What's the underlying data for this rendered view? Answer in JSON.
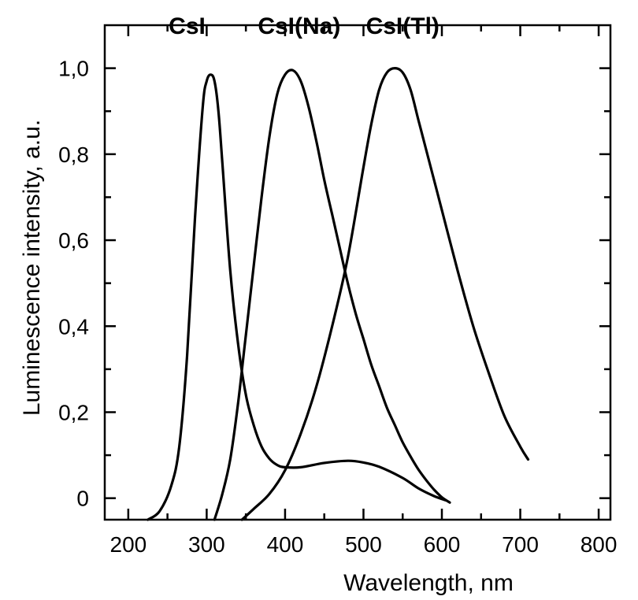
{
  "chart_data": {
    "type": "line",
    "title": "",
    "xlabel": "Wavelength, nm",
    "ylabel": "Luminescence intensity, a.u.",
    "xlim": [
      170,
      815
    ],
    "ylim": [
      -0.05,
      1.1
    ],
    "x_ticks": [
      {
        "value": 200,
        "label": "200"
      },
      {
        "value": 300,
        "label": "300"
      },
      {
        "value": 400,
        "label": "400"
      },
      {
        "value": 500,
        "label": "500"
      },
      {
        "value": 600,
        "label": "600"
      },
      {
        "value": 700,
        "label": "700"
      },
      {
        "value": 800,
        "label": "800"
      }
    ],
    "x_minor_ticks": [
      250,
      350,
      450,
      550,
      650,
      750
    ],
    "y_ticks": [
      {
        "value": 0.0,
        "label": "0"
      },
      {
        "value": 0.2,
        "label": "0,2"
      },
      {
        "value": 0.4,
        "label": "0,4"
      },
      {
        "value": 0.6,
        "label": "0,6"
      },
      {
        "value": 0.8,
        "label": "0,8"
      },
      {
        "value": 1.0,
        "label": "1,0"
      }
    ],
    "y_minor_ticks": [
      0.1,
      0.3,
      0.5,
      0.7,
      0.9
    ],
    "grid": false,
    "series": [
      {
        "name": "CsI",
        "label_at": [
          275,
          1.08
        ],
        "x": [
          225,
          240,
          255,
          265,
          275,
          285,
          295,
          300,
          305,
          310,
          315,
          320,
          330,
          340,
          350,
          360,
          370,
          380,
          390,
          400,
          420,
          450,
          480,
          500,
          520,
          550,
          570,
          590,
          605
        ],
        "y": [
          -0.05,
          -0.03,
          0.03,
          0.12,
          0.33,
          0.65,
          0.91,
          0.97,
          0.985,
          0.97,
          0.9,
          0.78,
          0.53,
          0.36,
          0.24,
          0.17,
          0.12,
          0.092,
          0.077,
          0.072,
          0.072,
          0.082,
          0.087,
          0.083,
          0.073,
          0.047,
          0.023,
          0.005,
          -0.005
        ]
      },
      {
        "name": "CsI(Na)",
        "label_at": [
          418,
          1.08
        ],
        "x": [
          310,
          320,
          330,
          340,
          350,
          360,
          370,
          380,
          390,
          400,
          410,
          420,
          430,
          440,
          450,
          460,
          470,
          480,
          490,
          500,
          510,
          520,
          530,
          540,
          550,
          560,
          570,
          580,
          590,
          600,
          610
        ],
        "y": [
          -0.05,
          0.01,
          0.09,
          0.22,
          0.38,
          0.54,
          0.7,
          0.84,
          0.94,
          0.985,
          0.995,
          0.97,
          0.91,
          0.83,
          0.74,
          0.66,
          0.58,
          0.5,
          0.43,
          0.37,
          0.31,
          0.26,
          0.21,
          0.17,
          0.13,
          0.097,
          0.067,
          0.042,
          0.02,
          0.002,
          -0.01
        ]
      },
      {
        "name": "CsI(Tl)",
        "label_at": [
          550,
          1.08
        ],
        "x": [
          345,
          360,
          380,
          400,
          420,
          440,
          460,
          480,
          500,
          510,
          520,
          530,
          540,
          550,
          560,
          570,
          580,
          600,
          620,
          640,
          660,
          680,
          700,
          710
        ],
        "y": [
          -0.05,
          -0.025,
          0.01,
          0.065,
          0.15,
          0.26,
          0.4,
          0.56,
          0.77,
          0.87,
          0.95,
          0.99,
          1.0,
          0.99,
          0.95,
          0.88,
          0.81,
          0.67,
          0.53,
          0.4,
          0.29,
          0.19,
          0.12,
          0.09
        ]
      }
    ]
  }
}
